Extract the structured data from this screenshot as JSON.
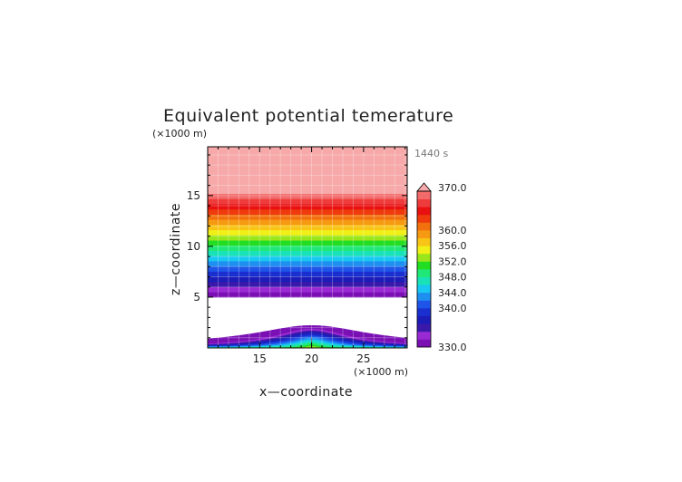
{
  "chart_data": {
    "type": "heatmap",
    "title": "Equivalent potential temerature",
    "xlabel": "x—coordinate",
    "ylabel": "z—coordinate",
    "x_unit": "(×1000 m)",
    "y_unit": "(×1000 m)",
    "time_label": "1440 s",
    "xlim": [
      10,
      29.2
    ],
    "ylim": [
      0,
      19.8
    ],
    "xticks": [
      15,
      20,
      25
    ],
    "xtick_labels": [
      "15",
      "20",
      "25"
    ],
    "yticks": [
      5,
      10,
      15
    ],
    "ytick_labels": [
      "5",
      "10",
      "15"
    ],
    "grid": true,
    "colorbar": {
      "min": 330.0,
      "max": 370.0,
      "levels": [
        330,
        332,
        334,
        336,
        338,
        340,
        342,
        344,
        346,
        348,
        350,
        352,
        354,
        356,
        358,
        360,
        362,
        364,
        366,
        368,
        370
      ],
      "tick_values": [
        330,
        340,
        344,
        348,
        352,
        356,
        360,
        370
      ],
      "tick_labels": [
        "330.0",
        "340.0",
        "344.0",
        "348.0",
        "352.0",
        "356.0",
        "360.0",
        "370.0"
      ],
      "colors": [
        "#7a10b4",
        "#9a2ad4",
        "#3a18aa",
        "#1c1cb8",
        "#1a2fd0",
        "#1e55e8",
        "#1e8ef0",
        "#18c8f0",
        "#1ae2b8",
        "#20e878",
        "#22dd22",
        "#9ae61a",
        "#f0f018",
        "#f8c416",
        "#f59a12",
        "#f2700e",
        "#ee3a0c",
        "#e81010",
        "#ee3c3c",
        "#f36a6a",
        "#f89a9a"
      ],
      "overflow_color": "#f7a8a8"
    },
    "upper_layer": {
      "z_bottom": 5.0,
      "z_top": 19.8,
      "theta_e_at_bottom": 330,
      "theta_e_at_top": 370,
      "uniform_above_z": 15.2,
      "note_direction": "increasing upward"
    },
    "terrain_mound": {
      "center_x": 20,
      "peak_height": 1.9,
      "half_width": 4.8,
      "core_max_value": 354,
      "edge_value": 330
    },
    "blank_region": {
      "z_from": 0,
      "z_to": 5.0,
      "x_from": 10,
      "x_to": 29.2
    }
  }
}
